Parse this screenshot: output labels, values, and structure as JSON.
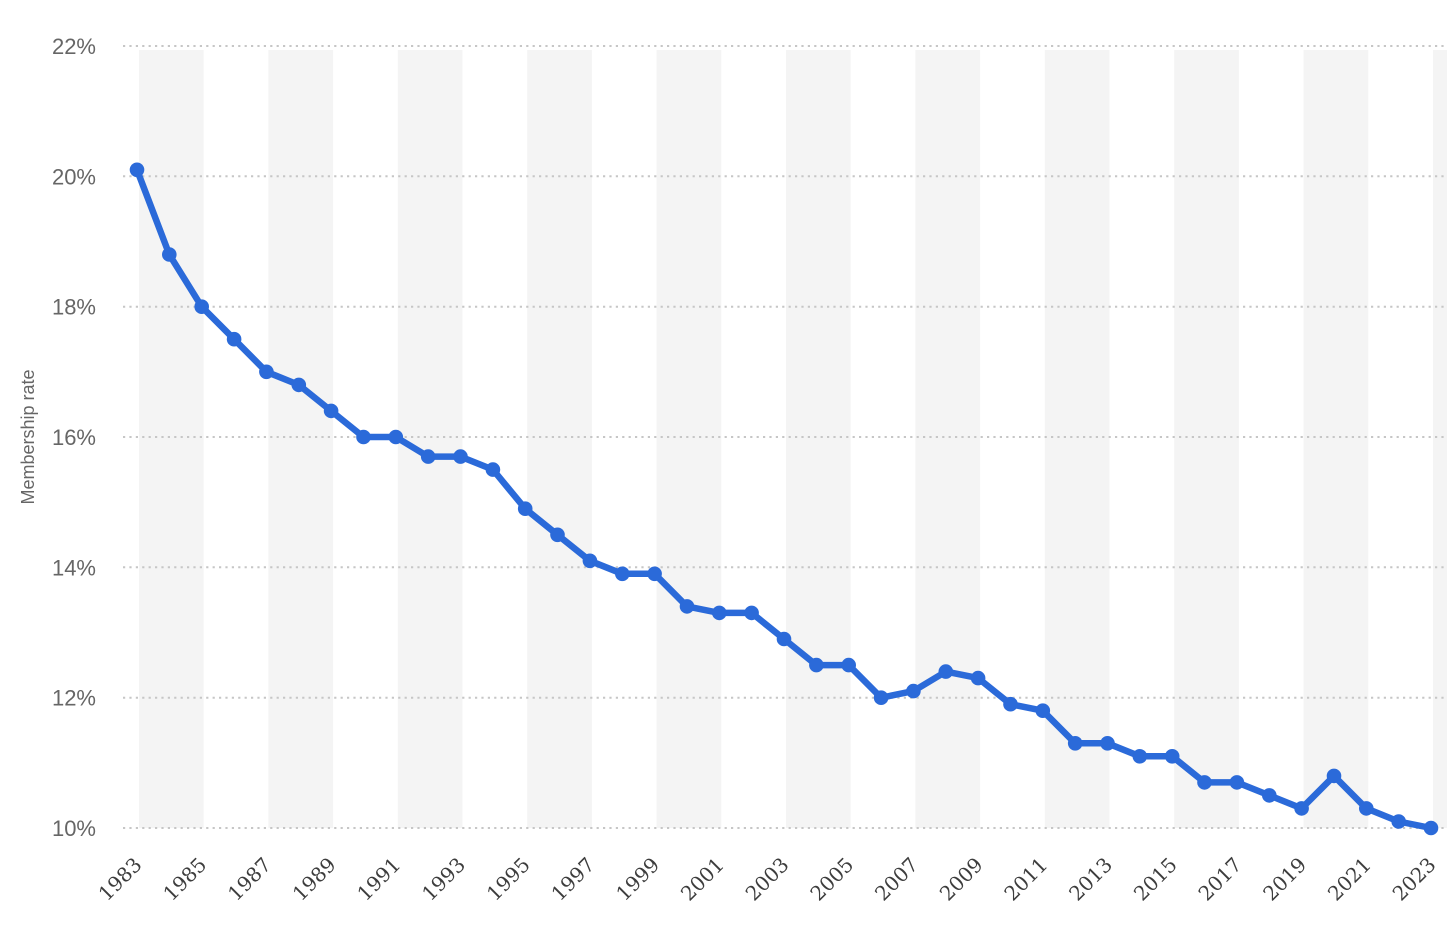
{
  "chart_data": {
    "type": "line",
    "title": "",
    "xlabel": "",
    "ylabel": "Membership rate",
    "legend": "none",
    "grid": "horizontal-dotted",
    "ylim": [
      10,
      22
    ],
    "y_tick_values": [
      22,
      20,
      18,
      16,
      14,
      12,
      10
    ],
    "y_tick_labels": [
      "22%",
      "20%",
      "18%",
      "16%",
      "14%",
      "12%",
      "10%"
    ],
    "x_tick_labels": [
      "1983",
      "1985",
      "1987",
      "1989",
      "1991",
      "1993",
      "1995",
      "1997",
      "1999",
      "2001",
      "2003",
      "2005",
      "2007",
      "2009",
      "2011",
      "2013",
      "2015",
      "2017",
      "2019",
      "2021",
      "2023"
    ],
    "x": [
      1983,
      1984,
      1985,
      1986,
      1987,
      1988,
      1989,
      1990,
      1991,
      1992,
      1993,
      1994,
      1995,
      1996,
      1997,
      1998,
      1999,
      2000,
      2001,
      2002,
      2003,
      2004,
      2005,
      2006,
      2007,
      2008,
      2009,
      2010,
      2011,
      2012,
      2013,
      2014,
      2015,
      2016,
      2017,
      2018,
      2019,
      2020,
      2021,
      2022,
      2023
    ],
    "series": [
      {
        "name": "Membership rate",
        "values": [
          20.1,
          18.8,
          18.0,
          17.5,
          17.0,
          16.8,
          16.4,
          16.0,
          16.0,
          15.7,
          15.7,
          15.5,
          14.9,
          14.5,
          14.1,
          13.9,
          13.9,
          13.4,
          13.3,
          13.3,
          12.9,
          12.5,
          12.5,
          12.0,
          12.1,
          12.4,
          12.3,
          11.9,
          11.8,
          11.3,
          11.3,
          11.1,
          11.1,
          10.7,
          10.7,
          10.5,
          10.3,
          10.8,
          10.3,
          10.1,
          10.0
        ]
      }
    ],
    "colors": {
      "line": "#2b6ad9",
      "marker": "#2b6ad9",
      "band_fill": "#f4f4f4",
      "gridline": "#c6c6c6",
      "y_tick_text": "#666666",
      "x_tick_text": "#3d3d3d",
      "y_axis_title_text": "#666666",
      "background": "#ffffff"
    }
  }
}
